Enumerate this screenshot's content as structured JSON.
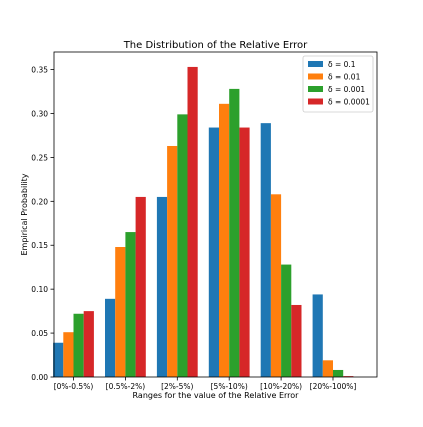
{
  "chart_data": {
    "type": "bar",
    "title": "The Distribution of the Relative Error",
    "xlabel": "Ranges for the value of the Relative Error",
    "ylabel": "Empirical Probability",
    "categories": [
      "[0%-0.5%)",
      "[0.5%-2%)",
      "[2%-5%)",
      "[5%-10%)",
      "[10%-20%)",
      "[20%-100%]"
    ],
    "ylim": [
      0,
      0.37
    ],
    "yticks": [
      "0.00",
      "0.05",
      "0.10",
      "0.15",
      "0.20",
      "0.25",
      "0.30",
      "0.35"
    ],
    "legend_position": "top-right",
    "grid": false,
    "series": [
      {
        "name": "δ = 0.1",
        "color": "#1f77b4",
        "values": [
          0.039,
          0.089,
          0.205,
          0.284,
          0.289,
          0.094
        ]
      },
      {
        "name": "δ = 0.01",
        "color": "#ff7f0e",
        "values": [
          0.051,
          0.148,
          0.263,
          0.311,
          0.208,
          0.019
        ]
      },
      {
        "name": "δ = 0.001",
        "color": "#2ca02c",
        "values": [
          0.072,
          0.165,
          0.299,
          0.328,
          0.128,
          0.008
        ]
      },
      {
        "name": "δ = 0.0001",
        "color": "#d62728",
        "values": [
          0.075,
          0.205,
          0.353,
          0.284,
          0.082,
          0.001
        ]
      }
    ]
  }
}
